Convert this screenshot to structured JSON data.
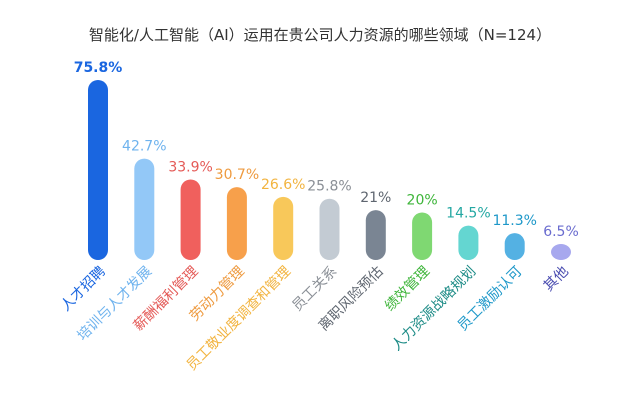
{
  "chart_data": {
    "type": "bar",
    "title": "智能化/人工智能（AI）运用在贵公司人力资源的哪些领域（N=124）",
    "categories": [
      "人才招聘",
      "培训与人才发展",
      "薪酬福利管理",
      "劳动力管理",
      "员工敬业度调查和管理",
      "员工关系",
      "离职风险预估",
      "绩效管理",
      "人力资源战略规划",
      "员工激励认可",
      "其他"
    ],
    "values": [
      75.8,
      42.7,
      33.9,
      30.7,
      26.6,
      25.8,
      21,
      20,
      14.5,
      11.3,
      6.5
    ],
    "value_labels": [
      "75.8%",
      "42.7%",
      "33.9%",
      "30.7%",
      "26.6%",
      "25.8%",
      "21%",
      "20%",
      "14.5%",
      "11.3%",
      "6.5%"
    ],
    "unit": "%",
    "ylim": [
      0,
      80
    ],
    "grid": false,
    "xlabel": "",
    "ylabel": "",
    "bar_colors": [
      "#1a66e0",
      "#93c8f7",
      "#f0605d",
      "#f7a04b",
      "#f8c85a",
      "#c3cbd3",
      "#7a8593",
      "#7fd872",
      "#64d6d1",
      "#54b1e3",
      "#a7a8ee"
    ],
    "value_label_colors": [
      "#1a66e0",
      "#6fb3ee",
      "#e45a57",
      "#ee9a3f",
      "#f2b440",
      "#8a8f96",
      "#5f6670",
      "#3eb53a",
      "#25a8a3",
      "#1e98c9",
      "#6a6ccf"
    ],
    "category_label_colors": [
      "#1a66e0",
      "#6fb3ee",
      "#e45a57",
      "#ee9a3f",
      "#f2b440",
      "#8a8f96",
      "#5f6670",
      "#3eb53a",
      "#1e8c87",
      "#1e98c9",
      "#4a4cb0"
    ]
  }
}
